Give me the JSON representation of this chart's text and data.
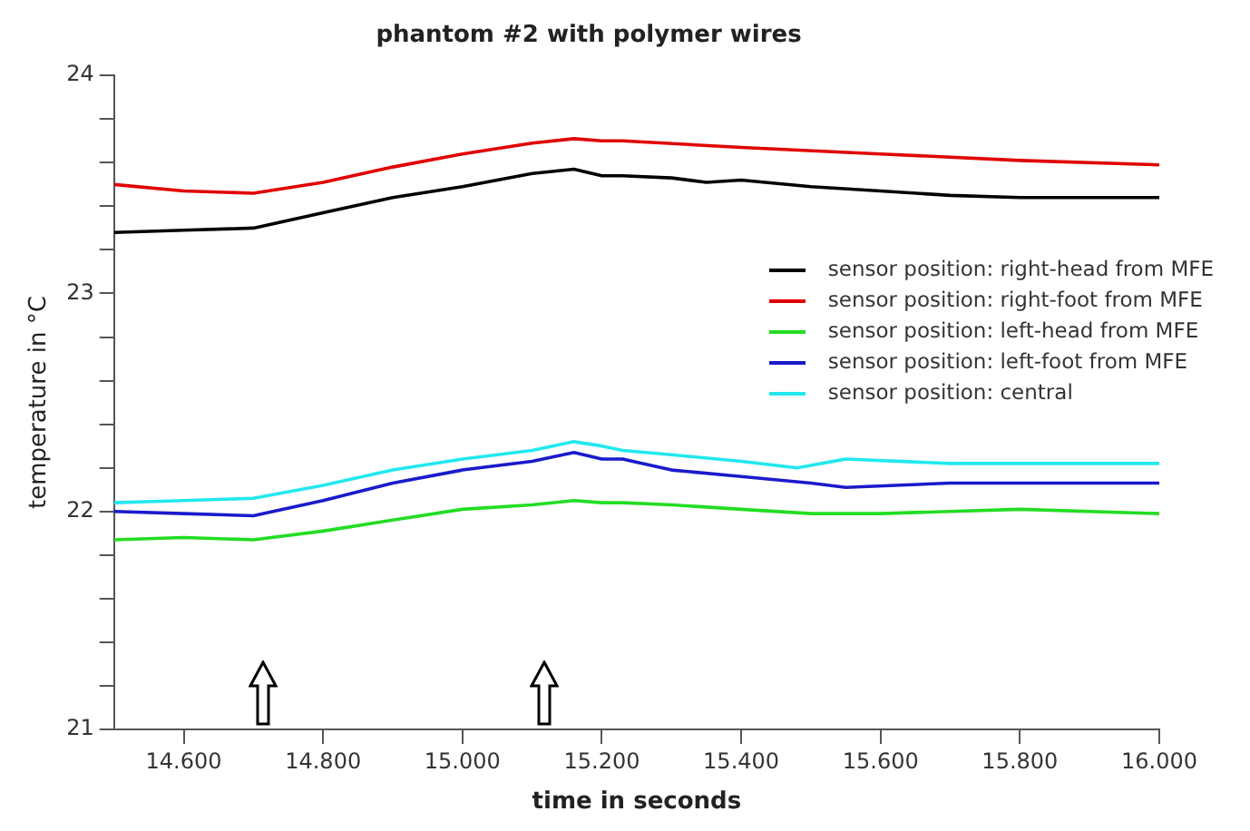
{
  "chart_data": {
    "type": "line",
    "title": "phantom #2 with polymer wires",
    "xlabel": "time in seconds",
    "ylabel": "temperature in °C",
    "xlim": [
      14.5,
      16.0
    ],
    "xticks": [
      {
        "value": 14.6,
        "label": "14.600"
      },
      {
        "value": 14.8,
        "label": "14.800"
      },
      {
        "value": 15.0,
        "label": "15.000"
      },
      {
        "value": 15.2,
        "label": "15.200"
      },
      {
        "value": 15.4,
        "label": "15.400"
      },
      {
        "value": 15.6,
        "label": "15.600"
      },
      {
        "value": 15.8,
        "label": "15.800"
      },
      {
        "value": 16.0,
        "label": "16.000"
      }
    ],
    "ylim": [
      21,
      24
    ],
    "yticks": [
      21,
      {
        "value": 21.2,
        "label": null
      },
      {
        "value": 21.4,
        "label": null
      },
      {
        "value": 21.6,
        "label": null
      },
      {
        "value": 21.8,
        "label": null
      },
      22,
      {
        "value": 22.2,
        "label": null
      },
      {
        "value": 22.4,
        "label": null
      },
      {
        "value": 22.6,
        "label": null
      },
      {
        "value": 22.8,
        "label": null
      },
      23,
      {
        "value": 23.2,
        "label": null
      },
      {
        "value": 23.4,
        "label": null
      },
      {
        "value": 23.6,
        "label": null
      },
      {
        "value": 23.8,
        "label": null
      },
      24
    ],
    "grid": false,
    "legend": "right",
    "marker": "none",
    "line_style": "solid",
    "series": [
      {
        "name": "sensor position: right-head from MFE",
        "color": "#000000",
        "x": [
          14.5,
          14.6,
          14.7,
          14.8,
          14.9,
          15.0,
          15.1,
          15.16,
          15.2,
          15.23,
          15.3,
          15.35,
          15.4,
          15.5,
          15.6,
          15.7,
          15.8,
          15.9,
          16.0
        ],
        "values": [
          23.28,
          23.29,
          23.3,
          23.37,
          23.44,
          23.49,
          23.55,
          23.57,
          23.54,
          23.54,
          23.53,
          23.51,
          23.52,
          23.49,
          23.47,
          23.45,
          23.44,
          23.44,
          23.44
        ]
      },
      {
        "name": "sensor position: right-foot from MFE",
        "color": "#e00000",
        "x": [
          14.5,
          14.6,
          14.7,
          14.8,
          14.9,
          15.0,
          15.1,
          15.16,
          15.2,
          15.23,
          15.4,
          15.6,
          15.8,
          16.0
        ],
        "values": [
          23.5,
          23.47,
          23.46,
          23.51,
          23.58,
          23.64,
          23.69,
          23.71,
          23.7,
          23.7,
          23.67,
          23.64,
          23.61,
          23.59
        ]
      },
      {
        "name": "sensor position: left-head from MFE",
        "color": "#22dd22",
        "x": [
          14.5,
          14.6,
          14.7,
          14.8,
          14.9,
          15.0,
          15.1,
          15.16,
          15.2,
          15.23,
          15.3,
          15.4,
          15.5,
          15.6,
          15.7,
          15.8,
          16.0
        ],
        "values": [
          21.87,
          21.88,
          21.87,
          21.91,
          21.96,
          22.01,
          22.03,
          22.05,
          22.04,
          22.04,
          22.03,
          22.01,
          21.99,
          21.99,
          22.0,
          22.01,
          21.99
        ]
      },
      {
        "name": "sensor position: left-foot from MFE",
        "color": "#1a1acc",
        "x": [
          14.5,
          14.6,
          14.7,
          14.8,
          14.9,
          15.0,
          15.1,
          15.16,
          15.2,
          15.23,
          15.3,
          15.4,
          15.5,
          15.55,
          15.7,
          15.8,
          16.0
        ],
        "values": [
          22.0,
          21.99,
          21.98,
          22.05,
          22.13,
          22.19,
          22.23,
          22.27,
          22.24,
          22.24,
          22.19,
          22.16,
          22.13,
          22.11,
          22.13,
          22.13,
          22.13
        ]
      },
      {
        "name": "sensor position: central",
        "color": "#22e8ee",
        "x": [
          14.5,
          14.6,
          14.7,
          14.8,
          14.9,
          15.0,
          15.1,
          15.16,
          15.2,
          15.23,
          15.3,
          15.4,
          15.48,
          15.55,
          15.7,
          15.8,
          16.0
        ],
        "values": [
          22.04,
          22.05,
          22.06,
          22.12,
          22.19,
          22.24,
          22.28,
          22.32,
          22.3,
          22.28,
          22.26,
          22.23,
          22.2,
          22.24,
          22.22,
          22.22,
          22.22
        ]
      }
    ]
  }
}
